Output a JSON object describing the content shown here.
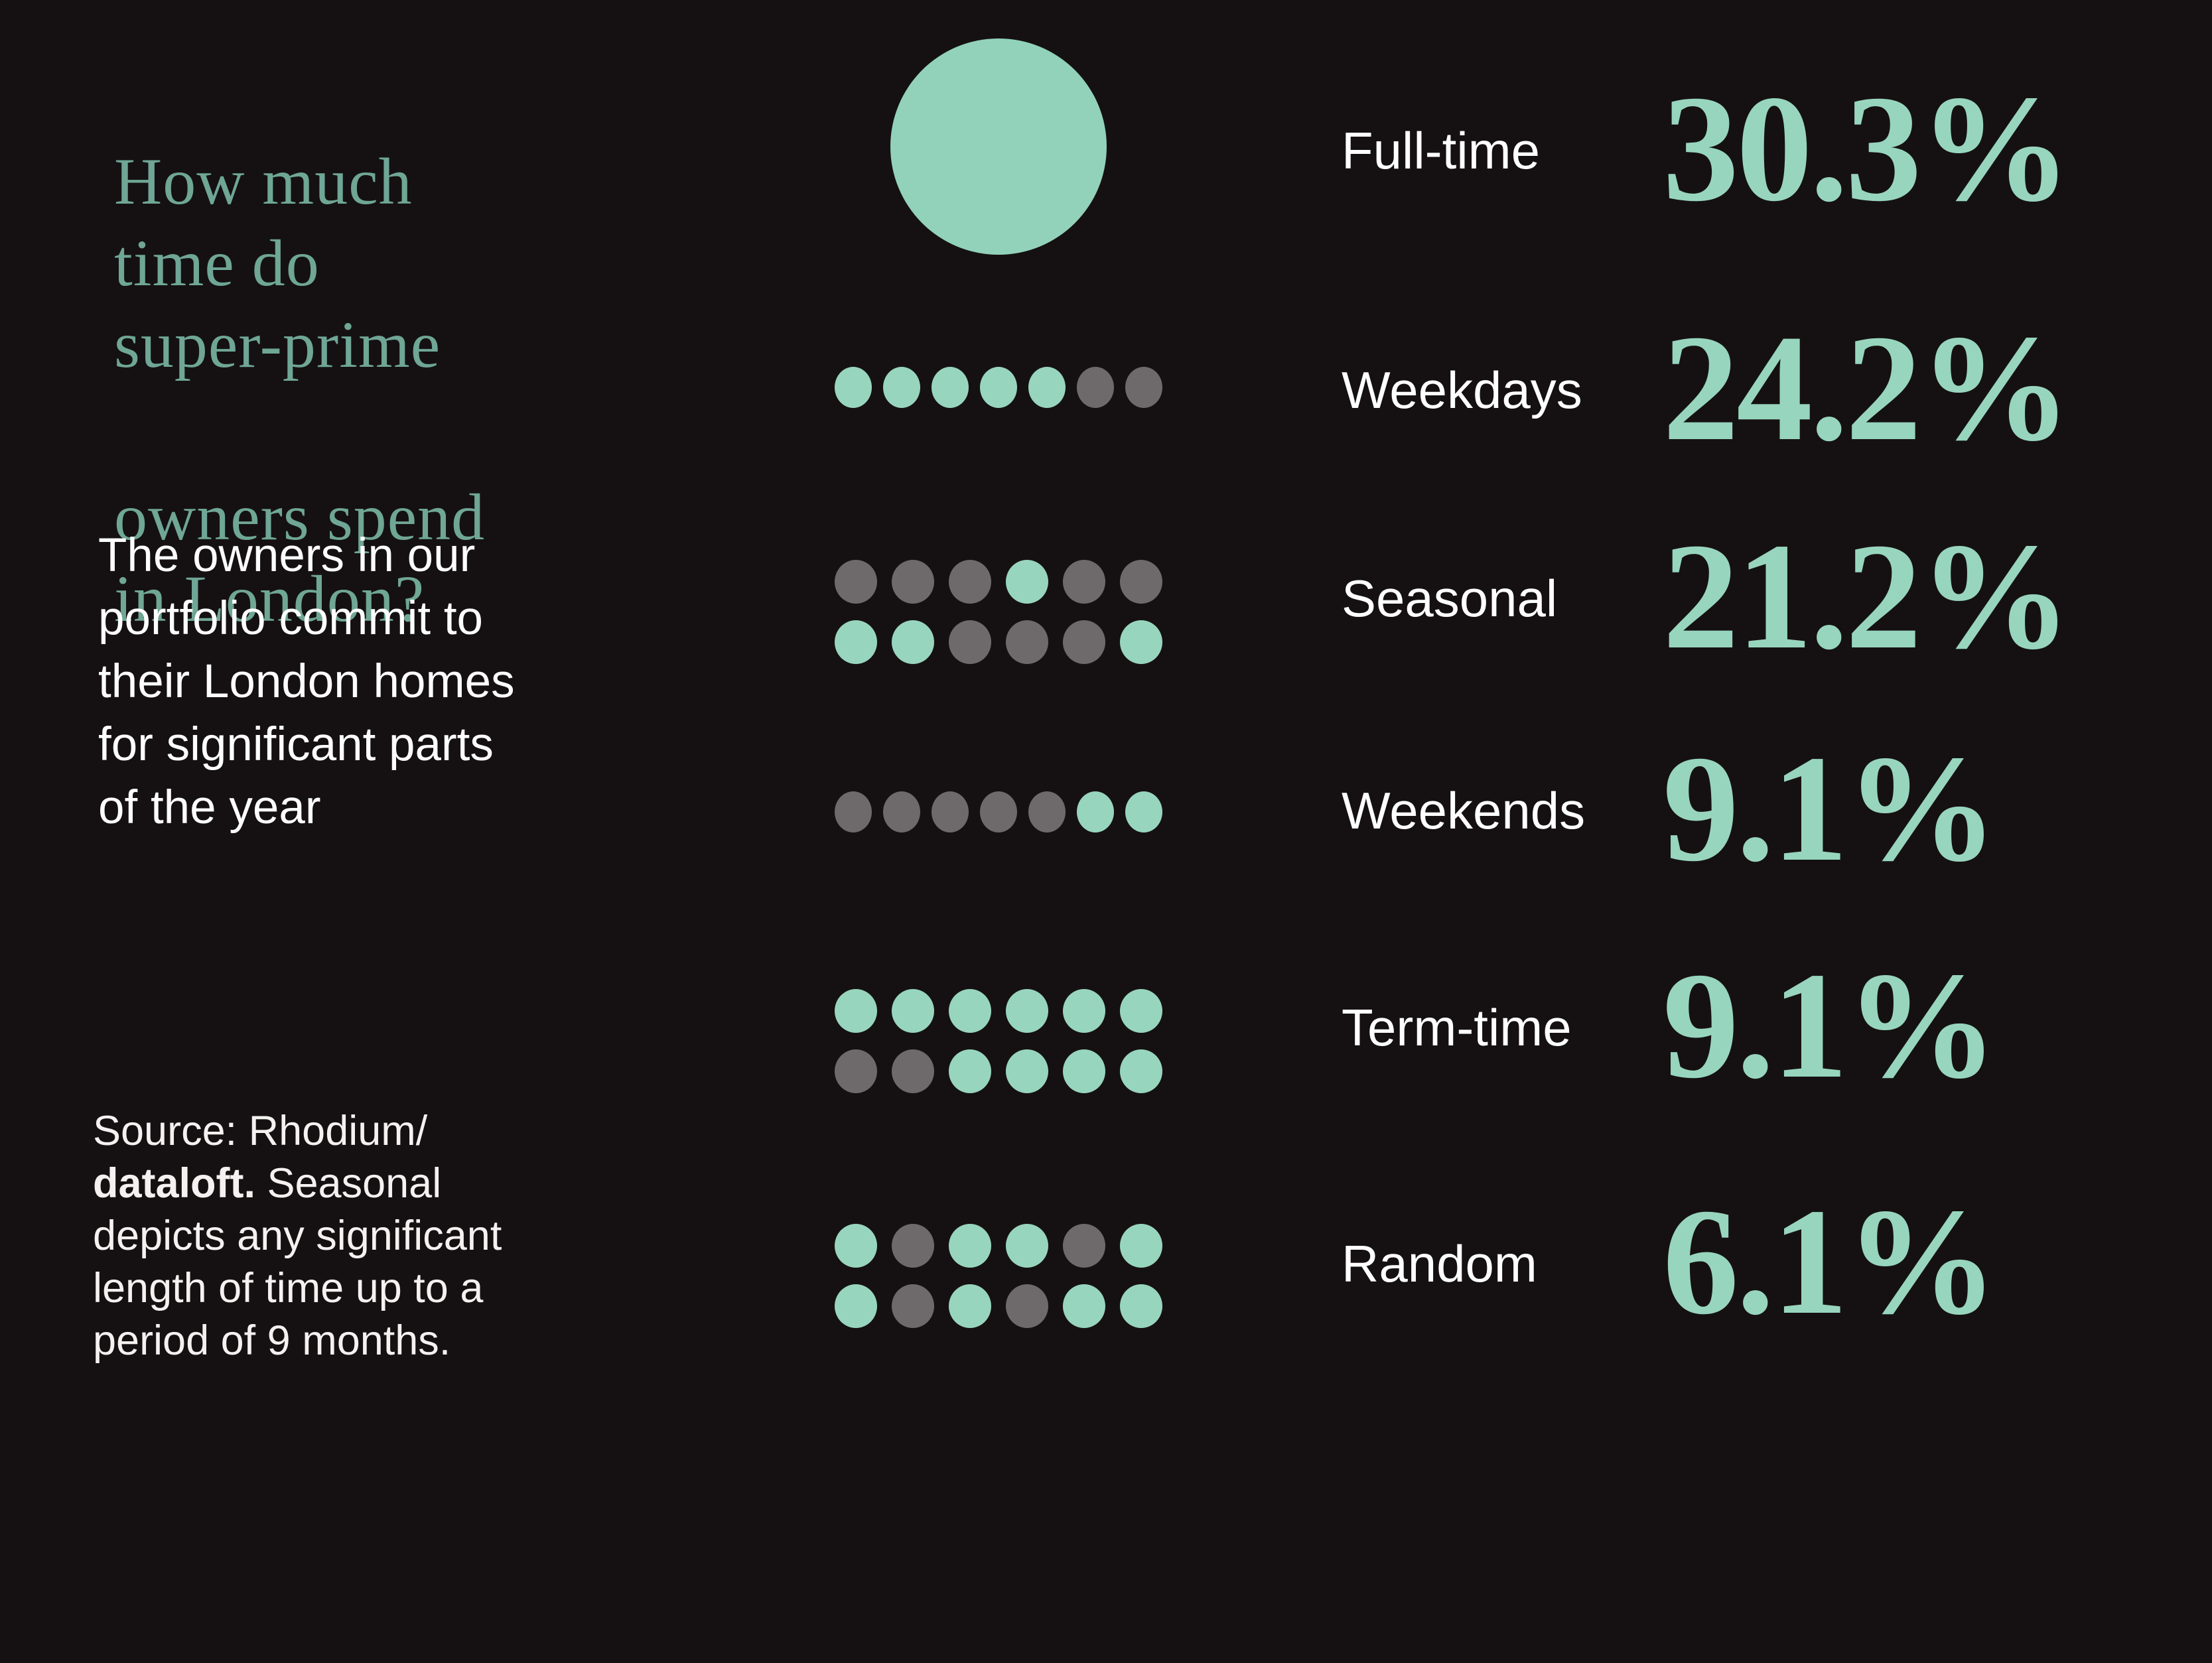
{
  "colors": {
    "background": "#151112",
    "mint": "#98d5be",
    "circle_mint": "#92d2ba",
    "title_teal": "#6fa695",
    "dot_gray": "#6e6a6b",
    "text_white": "#ffffff"
  },
  "title": {
    "para1": "How much\ntime do\nsuper-prime",
    "para2": "owners spend\nin London?"
  },
  "subtitle": {
    "lines": [
      "The owners in our",
      "portfolio commit to",
      "their London homes",
      "for significant parts",
      "of the year"
    ]
  },
  "source": {
    "line1": "Source: Rhodium/",
    "brand": "dataloft.",
    "line2_rest": " Seasonal",
    "line3": "depicts any significant",
    "line4": "length of time up to a",
    "line5": "period of 9 months."
  },
  "rows": [
    {
      "label": "Full-time",
      "percent": "30.3%",
      "viz": "large-circle"
    },
    {
      "label": "Weekdays",
      "percent": "24.2%",
      "pattern": [
        [
          "m",
          "m",
          "m",
          "m",
          "m",
          "g",
          "g"
        ]
      ]
    },
    {
      "label": "Seasonal",
      "percent": "21.2%",
      "pattern": [
        [
          "g",
          "g",
          "g",
          "m",
          "g",
          "g"
        ],
        [
          "m",
          "m",
          "g",
          "g",
          "g",
          "m"
        ]
      ]
    },
    {
      "label": "Weekends",
      "percent": "9.1%",
      "pattern": [
        [
          "g",
          "g",
          "g",
          "g",
          "g",
          "m",
          "m"
        ]
      ]
    },
    {
      "label": "Term-time",
      "percent": "9.1%",
      "pattern": [
        [
          "m",
          "m",
          "m",
          "m",
          "m",
          "m"
        ],
        [
          "g",
          "g",
          "m",
          "m",
          "m",
          "m"
        ]
      ]
    },
    {
      "label": "Random",
      "percent": "6.1%",
      "pattern": [
        [
          "m",
          "g",
          "m",
          "m",
          "g",
          "m"
        ],
        [
          "m",
          "g",
          "m",
          "g",
          "m",
          "m"
        ]
      ]
    }
  ],
  "chart_data": {
    "type": "bar",
    "variant": "dot-pictogram",
    "title": "How much time do super-prime owners spend in London?",
    "subtitle": "The owners in our portfolio commit to their London homes for significant parts of the year",
    "source_note": "Source: Rhodium/dataloft. Seasonal depicts any significant length of time up to a period of 9 months.",
    "categories": [
      "Full-time",
      "Weekdays",
      "Seasonal",
      "Weekends",
      "Term-time",
      "Random"
    ],
    "values": [
      30.3,
      24.2,
      21.2,
      9.1,
      9.1,
      6.1
    ],
    "value_labels": [
      "30.3%",
      "24.2%",
      "21.2%",
      "9.1%",
      "9.1%",
      "6.1%"
    ],
    "unit": "%",
    "legend_position": "none",
    "dot_colors": {
      "m": "mint (highlighted)",
      "g": "gray (muted)"
    },
    "dot_patterns": {
      "Full-time": "single large mint circle",
      "Weekdays": [
        [
          "m",
          "m",
          "m",
          "m",
          "m",
          "g",
          "g"
        ]
      ],
      "Seasonal": [
        [
          "g",
          "g",
          "g",
          "m",
          "g",
          "g"
        ],
        [
          "m",
          "m",
          "g",
          "g",
          "g",
          "m"
        ]
      ],
      "Weekends": [
        [
          "g",
          "g",
          "g",
          "g",
          "g",
          "m",
          "m"
        ]
      ],
      "Term-time": [
        [
          "m",
          "m",
          "m",
          "m",
          "m",
          "m"
        ],
        [
          "g",
          "g",
          "m",
          "m",
          "m",
          "m"
        ]
      ],
      "Random": [
        [
          "m",
          "g",
          "m",
          "m",
          "g",
          "m"
        ],
        [
          "m",
          "g",
          "m",
          "g",
          "m",
          "m"
        ]
      ]
    }
  }
}
